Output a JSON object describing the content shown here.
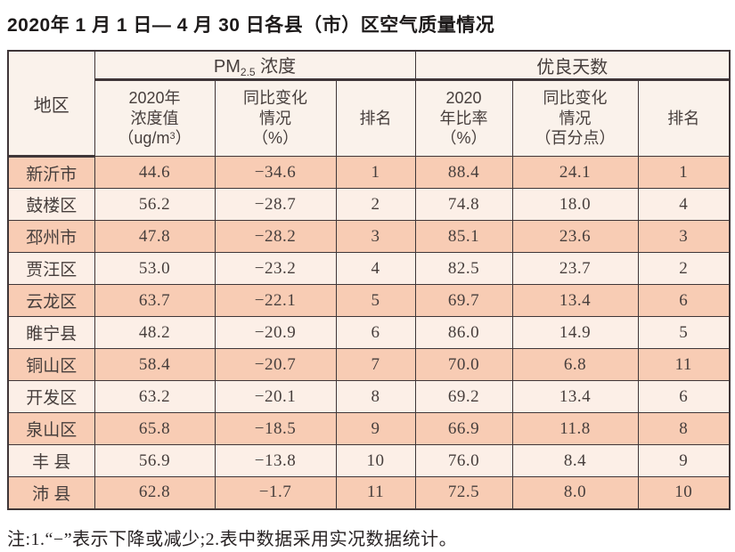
{
  "title": "2020年 1 月 1 日— 4 月 30 日各县（市）区空气质量情况",
  "note": "注:1.“−”表示下降或减少;2.表中数据采用实况数据统计。",
  "colors": {
    "row_odd_bg": "#f8ccb4",
    "row_even_bg": "#fcefe7",
    "header_bg": "#faf2eb",
    "border": "#3f3638",
    "text": "#463e3c"
  },
  "table": {
    "headers": {
      "region": "地区",
      "pm_group": {
        "pm": "PM",
        "pm_sub": "2.5",
        "rest": " 浓度"
      },
      "good_group": "优良天数",
      "pm_value": {
        "l1": "2020年",
        "l2": "浓度值",
        "unit_pre": "（ug/m",
        "unit_sup": "3",
        "unit_post": "）"
      },
      "pm_change": {
        "l1": "同比变化",
        "l2": "情况",
        "l3": "（%）"
      },
      "pm_rank": "排名",
      "good_ratio": {
        "l1": "2020",
        "l2": "年比率",
        "l3": "（%）"
      },
      "good_change": {
        "l1": "同比变化",
        "l2": "情况",
        "l3": "（百分点）"
      },
      "good_rank": "排名"
    },
    "rows": [
      {
        "region": "新沂市",
        "pm_value": "44.6",
        "pm_change": "−34.6",
        "pm_rank": "1",
        "good_ratio": "88.4",
        "good_change": "24.1",
        "good_rank": "1"
      },
      {
        "region": "鼓楼区",
        "pm_value": "56.2",
        "pm_change": "−28.7",
        "pm_rank": "2",
        "good_ratio": "74.8",
        "good_change": "18.0",
        "good_rank": "4"
      },
      {
        "region": "邳州市",
        "pm_value": "47.8",
        "pm_change": "−28.2",
        "pm_rank": "3",
        "good_ratio": "85.1",
        "good_change": "23.6",
        "good_rank": "3"
      },
      {
        "region": "贾汪区",
        "pm_value": "53.0",
        "pm_change": "−23.2",
        "pm_rank": "4",
        "good_ratio": "82.5",
        "good_change": "23.7",
        "good_rank": "2"
      },
      {
        "region": "云龙区",
        "pm_value": "63.7",
        "pm_change": "−22.1",
        "pm_rank": "5",
        "good_ratio": "69.7",
        "good_change": "13.4",
        "good_rank": "6"
      },
      {
        "region": "睢宁县",
        "pm_value": "48.2",
        "pm_change": "−20.9",
        "pm_rank": "6",
        "good_ratio": "86.0",
        "good_change": "14.9",
        "good_rank": "5"
      },
      {
        "region": "铜山区",
        "pm_value": "58.4",
        "pm_change": "−20.7",
        "pm_rank": "7",
        "good_ratio": "70.0",
        "good_change": "6.8",
        "good_rank": "11"
      },
      {
        "region": "开发区",
        "pm_value": "63.2",
        "pm_change": "−20.1",
        "pm_rank": "8",
        "good_ratio": "69.2",
        "good_change": "13.4",
        "good_rank": "6"
      },
      {
        "region": "泉山区",
        "pm_value": "65.8",
        "pm_change": "−18.5",
        "pm_rank": "9",
        "good_ratio": "66.9",
        "good_change": "11.8",
        "good_rank": "8"
      },
      {
        "region": "丰 县",
        "pm_value": "56.9",
        "pm_change": "−13.8",
        "pm_rank": "10",
        "good_ratio": "76.0",
        "good_change": "8.4",
        "good_rank": "9"
      },
      {
        "region": "沛 县",
        "pm_value": "62.8",
        "pm_change": "−1.7",
        "pm_rank": "11",
        "good_ratio": "72.5",
        "good_change": "8.0",
        "good_rank": "10"
      }
    ]
  }
}
